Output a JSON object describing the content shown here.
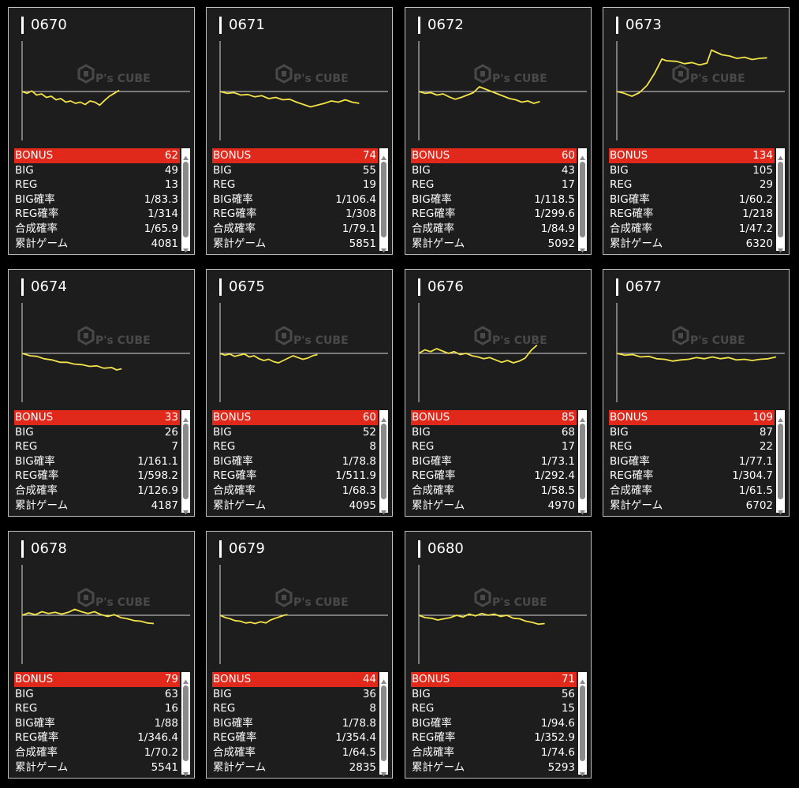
{
  "labels": {
    "bonus": "BONUS",
    "big": "BIG",
    "reg": "REG",
    "big_rate": "BIG確率",
    "reg_rate": "REG確率",
    "total_rate": "合成確率",
    "games": "累計ゲーム"
  },
  "watermark": {
    "text": "P's CUBE"
  },
  "colors": {
    "bonus_row": "#e0281b",
    "line": "#f2e24a",
    "background": "#000000",
    "card": "#1d1d1d"
  },
  "machines": [
    {
      "id": "0670",
      "bonus": "62",
      "big": "49",
      "reg": "13",
      "big_rate": "1/83.3",
      "reg_rate": "1/314",
      "total_rate": "1/65.9",
      "games": "4081",
      "graph": [
        [
          0,
          0
        ],
        [
          0.05,
          0.3
        ],
        [
          0.1,
          -0.1
        ],
        [
          0.15,
          0.6
        ],
        [
          0.2,
          0.4
        ],
        [
          0.25,
          1.0
        ],
        [
          0.3,
          0.8
        ],
        [
          0.35,
          1.4
        ],
        [
          0.4,
          1.2
        ],
        [
          0.45,
          1.8
        ],
        [
          0.5,
          1.6
        ],
        [
          0.55,
          2.0
        ],
        [
          0.6,
          1.8
        ],
        [
          0.65,
          2.2
        ],
        [
          0.7,
          1.6
        ],
        [
          0.75,
          1.8
        ],
        [
          0.8,
          2.3
        ],
        [
          0.85,
          1.5
        ],
        [
          0.9,
          0.8
        ],
        [
          0.95,
          0.3
        ],
        [
          1.0,
          -0.2
        ]
      ]
    },
    {
      "id": "0671",
      "bonus": "74",
      "big": "55",
      "reg": "19",
      "big_rate": "1/106.4",
      "reg_rate": "1/308",
      "total_rate": "1/79.1",
      "games": "5851",
      "graph": [
        [
          0,
          0
        ],
        [
          0.05,
          0.3
        ],
        [
          0.1,
          0.2
        ],
        [
          0.15,
          0.6
        ],
        [
          0.2,
          0.5
        ],
        [
          0.25,
          0.9
        ],
        [
          0.3,
          0.7
        ],
        [
          0.35,
          1.2
        ],
        [
          0.4,
          1.0
        ],
        [
          0.45,
          1.4
        ],
        [
          0.5,
          1.3
        ],
        [
          0.55,
          1.8
        ],
        [
          0.6,
          2.2
        ],
        [
          0.65,
          2.6
        ],
        [
          0.7,
          2.3
        ],
        [
          0.75,
          2.0
        ],
        [
          0.8,
          1.6
        ],
        [
          0.85,
          1.8
        ],
        [
          0.9,
          1.4
        ],
        [
          0.95,
          1.8
        ],
        [
          1.0,
          2.0
        ]
      ]
    },
    {
      "id": "0672",
      "bonus": "60",
      "big": "43",
      "reg": "17",
      "big_rate": "1/118.5",
      "reg_rate": "1/299.6",
      "total_rate": "1/84.9",
      "games": "5092",
      "graph": [
        [
          0,
          0
        ],
        [
          0.05,
          0.3
        ],
        [
          0.1,
          0.2
        ],
        [
          0.15,
          0.6
        ],
        [
          0.2,
          0.4
        ],
        [
          0.25,
          0.9
        ],
        [
          0.3,
          1.3
        ],
        [
          0.35,
          1.0
        ],
        [
          0.4,
          0.6
        ],
        [
          0.45,
          0.2
        ],
        [
          0.5,
          -0.8
        ],
        [
          0.55,
          -0.4
        ],
        [
          0.6,
          0.0
        ],
        [
          0.65,
          0.4
        ],
        [
          0.7,
          0.8
        ],
        [
          0.75,
          1.2
        ],
        [
          0.8,
          1.4
        ],
        [
          0.85,
          1.8
        ],
        [
          0.9,
          1.6
        ],
        [
          0.95,
          2.0
        ],
        [
          1.0,
          1.7
        ]
      ]
    },
    {
      "id": "0673",
      "bonus": "134",
      "big": "105",
      "reg": "29",
      "big_rate": "1/60.2",
      "reg_rate": "1/218",
      "total_rate": "1/47.2",
      "games": "6320",
      "graph": [
        [
          0,
          0
        ],
        [
          0.05,
          0.3
        ],
        [
          0.1,
          0.8
        ],
        [
          0.15,
          0.2
        ],
        [
          0.2,
          -1.0
        ],
        [
          0.25,
          -3.0
        ],
        [
          0.3,
          -5.5
        ],
        [
          0.33,
          -5.2
        ],
        [
          0.4,
          -5.1
        ],
        [
          0.45,
          -4.7
        ],
        [
          0.5,
          -4.9
        ],
        [
          0.55,
          -4.5
        ],
        [
          0.6,
          -4.8
        ],
        [
          0.63,
          -7.0
        ],
        [
          0.7,
          -6.2
        ],
        [
          0.75,
          -6.0
        ],
        [
          0.8,
          -5.6
        ],
        [
          0.85,
          -5.8
        ],
        [
          0.9,
          -5.4
        ],
        [
          0.95,
          -5.6
        ],
        [
          1.0,
          -5.7
        ]
      ]
    },
    {
      "id": "0674",
      "bonus": "33",
      "big": "26",
      "reg": "7",
      "big_rate": "1/161.1",
      "reg_rate": "1/598.2",
      "total_rate": "1/126.9",
      "games": "4187",
      "graph": [
        [
          0,
          0
        ],
        [
          0.08,
          0.4
        ],
        [
          0.15,
          0.5
        ],
        [
          0.22,
          0.9
        ],
        [
          0.3,
          1.1
        ],
        [
          0.38,
          1.5
        ],
        [
          0.45,
          1.5
        ],
        [
          0.52,
          1.8
        ],
        [
          0.6,
          1.9
        ],
        [
          0.68,
          2.2
        ],
        [
          0.75,
          2.1
        ],
        [
          0.82,
          2.5
        ],
        [
          0.9,
          2.4
        ],
        [
          0.95,
          2.8
        ],
        [
          1.0,
          2.6
        ]
      ]
    },
    {
      "id": "0675",
      "bonus": "60",
      "big": "52",
      "reg": "8",
      "big_rate": "1/78.8",
      "reg_rate": "1/511.9",
      "total_rate": "1/68.3",
      "games": "4095",
      "graph": [
        [
          0,
          0
        ],
        [
          0.05,
          0.3
        ],
        [
          0.1,
          0.1
        ],
        [
          0.15,
          0.5
        ],
        [
          0.2,
          0.3
        ],
        [
          0.25,
          0.1
        ],
        [
          0.3,
          0.6
        ],
        [
          0.35,
          0.4
        ],
        [
          0.4,
          0.9
        ],
        [
          0.45,
          1.2
        ],
        [
          0.5,
          1.0
        ],
        [
          0.55,
          1.4
        ],
        [
          0.6,
          1.6
        ],
        [
          0.65,
          1.2
        ],
        [
          0.7,
          0.8
        ],
        [
          0.75,
          0.4
        ],
        [
          0.8,
          0.7
        ],
        [
          0.85,
          1.0
        ],
        [
          0.9,
          0.8
        ],
        [
          0.95,
          0.4
        ],
        [
          1.0,
          0.2
        ]
      ]
    },
    {
      "id": "0676",
      "bonus": "85",
      "big": "68",
      "reg": "17",
      "big_rate": "1/73.1",
      "reg_rate": "1/292.4",
      "total_rate": "1/58.5",
      "games": "4970",
      "graph": [
        [
          0,
          0
        ],
        [
          0.05,
          -0.6
        ],
        [
          0.1,
          -0.3
        ],
        [
          0.15,
          -0.8
        ],
        [
          0.2,
          -0.4
        ],
        [
          0.25,
          0.0
        ],
        [
          0.3,
          -0.3
        ],
        [
          0.35,
          0.2
        ],
        [
          0.4,
          0.0
        ],
        [
          0.45,
          0.4
        ],
        [
          0.5,
          0.6
        ],
        [
          0.55,
          0.9
        ],
        [
          0.6,
          0.7
        ],
        [
          0.65,
          1.1
        ],
        [
          0.7,
          1.5
        ],
        [
          0.75,
          1.2
        ],
        [
          0.8,
          1.6
        ],
        [
          0.85,
          1.3
        ],
        [
          0.9,
          0.8
        ],
        [
          0.95,
          -0.5
        ],
        [
          1.0,
          -1.4
        ]
      ]
    },
    {
      "id": "0677",
      "bonus": "109",
      "big": "87",
      "reg": "22",
      "big_rate": "1/77.1",
      "reg_rate": "1/304.7",
      "total_rate": "1/61.5",
      "games": "6702",
      "graph": [
        [
          0,
          0
        ],
        [
          0.05,
          0.3
        ],
        [
          0.1,
          0.2
        ],
        [
          0.15,
          0.6
        ],
        [
          0.2,
          0.5
        ],
        [
          0.25,
          0.9
        ],
        [
          0.3,
          1.0
        ],
        [
          0.35,
          1.3
        ],
        [
          0.4,
          1.1
        ],
        [
          0.45,
          1.0
        ],
        [
          0.5,
          0.7
        ],
        [
          0.55,
          0.9
        ],
        [
          0.6,
          0.6
        ],
        [
          0.65,
          0.9
        ],
        [
          0.7,
          0.7
        ],
        [
          0.75,
          1.1
        ],
        [
          0.8,
          1.0
        ],
        [
          0.85,
          1.2
        ],
        [
          0.9,
          1.0
        ],
        [
          0.95,
          0.9
        ],
        [
          1.0,
          0.6
        ]
      ]
    },
    {
      "id": "0678",
      "bonus": "79",
      "big": "63",
      "reg": "16",
      "big_rate": "1/88",
      "reg_rate": "1/346.4",
      "total_rate": "1/70.2",
      "games": "5541",
      "graph": [
        [
          0,
          0
        ],
        [
          0.05,
          -0.4
        ],
        [
          0.1,
          -0.1
        ],
        [
          0.15,
          -0.6
        ],
        [
          0.2,
          -0.3
        ],
        [
          0.25,
          -0.5
        ],
        [
          0.3,
          -0.2
        ],
        [
          0.35,
          -0.5
        ],
        [
          0.4,
          -1.0
        ],
        [
          0.45,
          -0.6
        ],
        [
          0.5,
          -0.3
        ],
        [
          0.55,
          -0.6
        ],
        [
          0.6,
          -0.1
        ],
        [
          0.65,
          0.2
        ],
        [
          0.7,
          -0.1
        ],
        [
          0.75,
          0.4
        ],
        [
          0.8,
          0.6
        ],
        [
          0.85,
          0.9
        ],
        [
          0.9,
          1.0
        ],
        [
          0.95,
          1.3
        ],
        [
          1.0,
          1.4
        ]
      ]
    },
    {
      "id": "0679",
      "bonus": "44",
      "big": "36",
      "reg": "8",
      "big_rate": "1/78.8",
      "reg_rate": "1/354.4",
      "total_rate": "1/64.5",
      "games": "2835",
      "graph": [
        [
          0,
          0
        ],
        [
          0.08,
          0.4
        ],
        [
          0.15,
          0.6
        ],
        [
          0.22,
          0.9
        ],
        [
          0.3,
          1.0
        ],
        [
          0.38,
          1.3
        ],
        [
          0.45,
          1.2
        ],
        [
          0.52,
          1.4
        ],
        [
          0.6,
          1.1
        ],
        [
          0.68,
          1.3
        ],
        [
          0.75,
          0.8
        ],
        [
          0.82,
          0.5
        ],
        [
          0.9,
          0.2
        ],
        [
          0.95,
          0.0
        ],
        [
          1.0,
          -0.1
        ]
      ]
    },
    {
      "id": "0680",
      "bonus": "71",
      "big": "56",
      "reg": "15",
      "big_rate": "1/94.6",
      "reg_rate": "1/352.9",
      "total_rate": "1/74.6",
      "games": "5293",
      "graph": [
        [
          0,
          0
        ],
        [
          0.05,
          0.4
        ],
        [
          0.1,
          0.5
        ],
        [
          0.15,
          0.8
        ],
        [
          0.2,
          0.6
        ],
        [
          0.25,
          0.4
        ],
        [
          0.3,
          0.0
        ],
        [
          0.35,
          0.3
        ],
        [
          0.4,
          -0.2
        ],
        [
          0.45,
          0.1
        ],
        [
          0.5,
          -0.3
        ],
        [
          0.55,
          0.0
        ],
        [
          0.6,
          -0.2
        ],
        [
          0.65,
          0.2
        ],
        [
          0.7,
          0.0
        ],
        [
          0.75,
          0.5
        ],
        [
          0.8,
          0.6
        ],
        [
          0.85,
          1.0
        ],
        [
          0.9,
          1.2
        ],
        [
          0.95,
          1.5
        ],
        [
          1.0,
          1.4
        ]
      ]
    }
  ]
}
